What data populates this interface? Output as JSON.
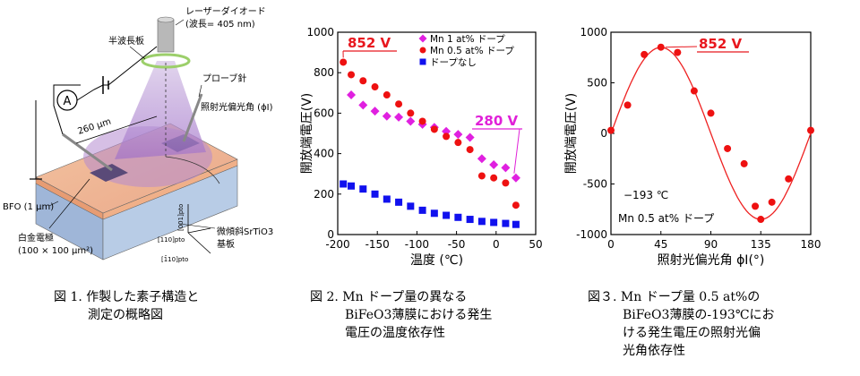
{
  "figures": {
    "fig1": {
      "labels": {
        "half_wave_plate": "半波長板",
        "laser_diode_line1": "レーザーダイオード",
        "laser_diode_line2": "(波長= 405 nm)",
        "probe_needle": "プローブ針",
        "polarization_angle": "照射光偏光角 (ϕI)",
        "distance": "260 μm",
        "bfo": "BFO (1 μm)",
        "pt_electrode_line1": "白金電極",
        "pt_electrode_line2": "(100 × 100 μm²)",
        "substrate_line1": "微傾斜SrTiO3",
        "substrate_line2": "基板",
        "ammeter": "A",
        "axis_001": "[001]pto",
        "axis_110": "[110]pto",
        "axis_1m10": "[1̄10]pto"
      },
      "caption": [
        "図 1. 作製した素子構造と",
        "測定の概略図"
      ]
    },
    "fig2": {
      "caption": [
        "図 2. Mn ドープ量の異なる",
        "BiFeO3薄膜における発生",
        "電圧の温度依存性"
      ]
    },
    "fig3": {
      "caption": [
        "図３. Mn ドープ量 0.5 at%の",
        "BiFeO3薄膜の-193℃にお",
        "ける発生電圧の照射光偏",
        "光角依存性"
      ]
    }
  },
  "chart_data": [
    {
      "type": "scatter",
      "xlabel": "温度 (℃)",
      "ylabel": "開放端電圧(V)",
      "xlim": [
        -200,
        50
      ],
      "ylim": [
        0,
        1000
      ],
      "xticks": [
        -200,
        -150,
        -100,
        -50,
        0,
        50
      ],
      "yticks": [
        0,
        200,
        400,
        600,
        800,
        1000
      ],
      "legend_position": "top-right",
      "annotations": [
        {
          "text": "852 V",
          "color": "#e8171e"
        },
        {
          "text": "280 V",
          "color": "#e020d8"
        }
      ],
      "series": [
        {
          "name": "Mn 1 at% ドープ",
          "marker": "diamond",
          "color": "#e020e0",
          "x": [
            -183,
            -168,
            -153,
            -138,
            -123,
            -108,
            -93,
            -78,
            -63,
            -48,
            -33,
            -18,
            -3,
            12,
            25
          ],
          "y": [
            690,
            640,
            610,
            585,
            580,
            560,
            545,
            530,
            510,
            495,
            480,
            375,
            345,
            330,
            280
          ]
        },
        {
          "name": "Mn 0.5 at% ドープ",
          "marker": "circle",
          "color": "#ee1111",
          "x": [
            -193,
            -183,
            -168,
            -153,
            -138,
            -123,
            -108,
            -93,
            -78,
            -63,
            -48,
            -33,
            -18,
            -3,
            12,
            25
          ],
          "y": [
            852,
            790,
            760,
            730,
            690,
            645,
            600,
            560,
            520,
            485,
            455,
            420,
            290,
            280,
            255,
            145
          ]
        },
        {
          "name": "ドープなし",
          "marker": "square",
          "color": "#1111ee",
          "x": [
            -193,
            -183,
            -168,
            -153,
            -138,
            -123,
            -108,
            -93,
            -78,
            -63,
            -48,
            -33,
            -18,
            -3,
            12,
            25
          ],
          "y": [
            250,
            240,
            225,
            200,
            175,
            160,
            140,
            120,
            105,
            95,
            85,
            75,
            65,
            60,
            55,
            50
          ]
        }
      ]
    },
    {
      "type": "scatter",
      "xlabel": "照射光偏光角 ϕI(°)",
      "ylabel": "開放端電圧(V)",
      "xlim": [
        0,
        180
      ],
      "ylim": [
        -1000,
        1000
      ],
      "xticks": [
        0,
        45,
        90,
        135,
        180
      ],
      "yticks": [
        -1000,
        -500,
        0,
        500,
        1000
      ],
      "annotations": [
        {
          "text": "852 V",
          "color": "#e8171e"
        },
        {
          "text": "−193 ℃",
          "color": "#000000"
        },
        {
          "text": "Mn 0.5 at% ドープ",
          "color": "#000000"
        }
      ],
      "series": [
        {
          "marker": "circle",
          "color": "#ee1111",
          "x": [
            0,
            15,
            30,
            45,
            60,
            75,
            90,
            105,
            120,
            130,
            135,
            145,
            160,
            180
          ],
          "y": [
            30,
            280,
            780,
            852,
            800,
            420,
            200,
            -150,
            -300,
            -720,
            -850,
            -680,
            -450,
            30
          ]
        }
      ],
      "fit": {
        "type": "sine",
        "amplitude": 850,
        "period_deg": 180,
        "phase_deg": 0,
        "color": "#ee2222"
      }
    }
  ]
}
